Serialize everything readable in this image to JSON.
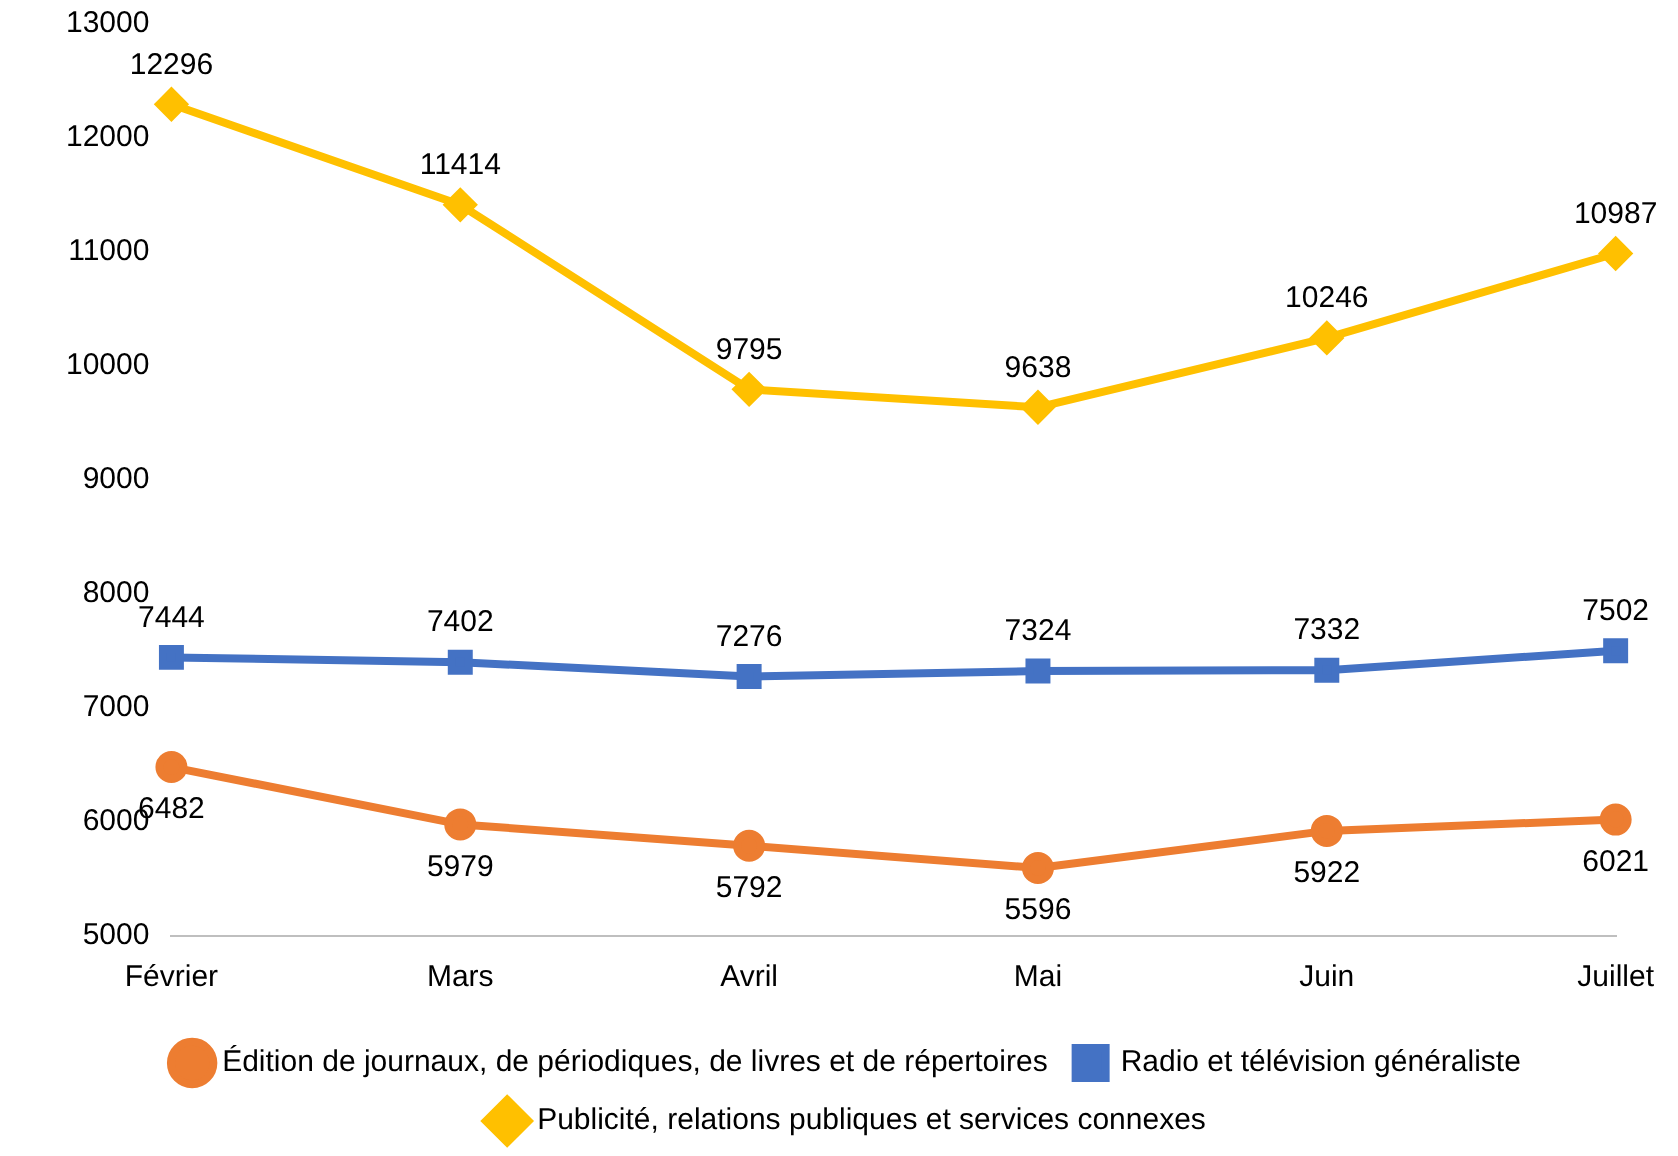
{
  "chart_data": {
    "type": "line",
    "categories": [
      "Février",
      "Mars",
      "Avril",
      "Mai",
      "Juin",
      "Juillet"
    ],
    "series": [
      {
        "name": "Édition de journaux, de périodiques, de livres et de répertoires",
        "color": "#ed7d31",
        "marker": "circle",
        "values": [
          6482,
          5979,
          5792,
          5596,
          5922,
          6021
        ]
      },
      {
        "name": "Radio et télévision généraliste",
        "color": "#4472c4",
        "marker": "square",
        "values": [
          7444,
          7402,
          7276,
          7324,
          7332,
          7502
        ]
      },
      {
        "name": "Publicité, relations publiques et services connexes",
        "color": "#ffc000",
        "marker": "diamond",
        "values": [
          12296,
          11414,
          9795,
          9638,
          10246,
          10987
        ]
      }
    ],
    "ylim": [
      5000,
      13000
    ],
    "yticks": [
      5000,
      6000,
      7000,
      8000,
      9000,
      10000,
      11000,
      12000,
      13000
    ],
    "grid": false,
    "legend": "bottom",
    "data_labels": true,
    "line_style": "solid"
  }
}
